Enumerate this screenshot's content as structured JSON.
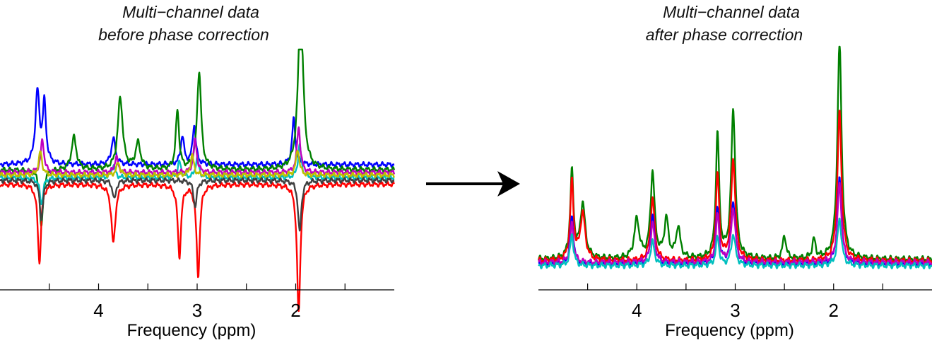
{
  "colors": {
    "background": "#ffffff",
    "axis": "#000000",
    "arrow": "#000000",
    "series_palette": [
      "#0000ff",
      "#008000",
      "#ff0000",
      "#00bfbf",
      "#bf00bf",
      "#bfbf00",
      "#404040"
    ]
  },
  "arrow_icon": "right-arrow-icon",
  "chart_data": [
    {
      "type": "line",
      "title_lines": [
        "Multi−channel data",
        "before phase correction"
      ],
      "xlabel": "Frequency (ppm)",
      "x_reversed": true,
      "xlim": [
        5.0,
        1.0
      ],
      "xticks": [
        4.5,
        4,
        3.5,
        3,
        2.5,
        2,
        1.5
      ],
      "xtick_labels": [
        "",
        "4",
        "",
        "3",
        "",
        "2",
        ""
      ],
      "ylim": [
        -1.0,
        1.0
      ],
      "grid": false,
      "legend": "none",
      "series": [
        {
          "color": "#0000ff",
          "baseline": 0.12,
          "peaks": [
            [
              4.62,
              0.55,
              0.025
            ],
            [
              4.55,
              0.45,
              0.02
            ],
            [
              3.85,
              0.2,
              0.025
            ],
            [
              3.15,
              0.22,
              0.02
            ],
            [
              3.03,
              0.3,
              0.02
            ],
            [
              2.02,
              0.35,
              0.02
            ]
          ]
        },
        {
          "color": "#008000",
          "baseline": 0.08,
          "peaks": [
            [
              4.58,
              -0.45,
              0.02
            ],
            [
              4.25,
              0.25,
              0.03
            ],
            [
              3.78,
              0.55,
              0.03
            ],
            [
              3.6,
              0.2,
              0.03
            ],
            [
              3.2,
              0.45,
              0.02
            ],
            [
              2.98,
              0.75,
              0.025
            ],
            [
              1.95,
              1.3,
              0.03
            ]
          ]
        },
        {
          "color": "#ff0000",
          "baseline": -0.03,
          "peaks": [
            [
              4.6,
              -0.6,
              0.02
            ],
            [
              3.85,
              -0.45,
              0.025
            ],
            [
              3.18,
              -0.55,
              0.02
            ],
            [
              2.99,
              -0.7,
              0.02
            ],
            [
              1.97,
              -1.0,
              0.02
            ]
          ]
        },
        {
          "color": "#00bfbf",
          "baseline": 0.02,
          "peaks": [
            [
              4.58,
              -0.2,
              0.02
            ],
            [
              3.85,
              0.1,
              0.02
            ],
            [
              3.18,
              0.12,
              0.02
            ],
            [
              3.0,
              0.15,
              0.02
            ],
            [
              1.96,
              0.25,
              0.02
            ]
          ]
        },
        {
          "color": "#bf00bf",
          "baseline": 0.06,
          "peaks": [
            [
              4.57,
              0.25,
              0.02
            ],
            [
              3.82,
              0.12,
              0.02
            ],
            [
              3.02,
              0.25,
              0.02
            ],
            [
              1.97,
              0.35,
              0.02
            ]
          ]
        },
        {
          "color": "#bfbf00",
          "baseline": 0.04,
          "peaks": [
            [
              4.59,
              0.18,
              0.02
            ],
            [
              3.8,
              0.1,
              0.02
            ],
            [
              3.05,
              0.15,
              0.02
            ],
            [
              1.98,
              0.2,
              0.02
            ]
          ]
        },
        {
          "color": "#404040",
          "baseline": 0.0,
          "peaks": [
            [
              4.58,
              -0.3,
              0.02
            ],
            [
              3.84,
              -0.15,
              0.02
            ],
            [
              3.02,
              -0.2,
              0.02
            ],
            [
              1.96,
              -0.4,
              0.02
            ]
          ]
        }
      ]
    },
    {
      "type": "line",
      "title_lines": [
        "Multi−channel data",
        "after phase correction"
      ],
      "xlabel": "Frequency (ppm)",
      "x_reversed": true,
      "xlim": [
        5.0,
        1.0
      ],
      "xticks": [
        4.5,
        4,
        3.5,
        3,
        2.5,
        2,
        1.5
      ],
      "xtick_labels": [
        "",
        "4",
        "",
        "3",
        "",
        "2",
        ""
      ],
      "ylim": [
        -0.3,
        1.4
      ],
      "grid": false,
      "legend": "none",
      "series": [
        {
          "color": "#008000",
          "baseline": 0.04,
          "peaks": [
            [
              4.66,
              0.55,
              0.02
            ],
            [
              4.55,
              0.35,
              0.03
            ],
            [
              4.0,
              0.25,
              0.03
            ],
            [
              3.84,
              0.55,
              0.025
            ],
            [
              3.7,
              0.25,
              0.025
            ],
            [
              3.58,
              0.2,
              0.025
            ],
            [
              3.18,
              0.8,
              0.02
            ],
            [
              3.02,
              0.95,
              0.025
            ],
            [
              2.5,
              0.15,
              0.02
            ],
            [
              2.2,
              0.12,
              0.02
            ],
            [
              1.94,
              1.4,
              0.025
            ]
          ]
        },
        {
          "color": "#ff0000",
          "baseline": 0.03,
          "peaks": [
            [
              4.66,
              0.5,
              0.02
            ],
            [
              4.55,
              0.3,
              0.03
            ],
            [
              3.84,
              0.4,
              0.025
            ],
            [
              3.18,
              0.55,
              0.02
            ],
            [
              3.02,
              0.65,
              0.025
            ],
            [
              1.94,
              0.95,
              0.025
            ]
          ]
        },
        {
          "color": "#0000ff",
          "baseline": 0.01,
          "peaks": [
            [
              4.66,
              0.3,
              0.02
            ],
            [
              3.84,
              0.3,
              0.025
            ],
            [
              3.18,
              0.35,
              0.02
            ],
            [
              3.02,
              0.4,
              0.025
            ],
            [
              1.94,
              0.55,
              0.025
            ]
          ]
        },
        {
          "color": "#bf00bf",
          "baseline": 0.02,
          "peaks": [
            [
              4.66,
              0.25,
              0.02
            ],
            [
              3.84,
              0.25,
              0.025
            ],
            [
              3.18,
              0.3,
              0.02
            ],
            [
              3.02,
              0.35,
              0.025
            ],
            [
              1.94,
              0.5,
              0.025
            ]
          ]
        },
        {
          "color": "#00bfbf",
          "baseline": 0.0,
          "peaks": [
            [
              4.66,
              0.2,
              0.02
            ],
            [
              3.84,
              0.15,
              0.025
            ],
            [
              3.18,
              0.18,
              0.02
            ],
            [
              3.02,
              0.2,
              0.025
            ],
            [
              1.94,
              0.3,
              0.025
            ]
          ]
        }
      ]
    }
  ]
}
